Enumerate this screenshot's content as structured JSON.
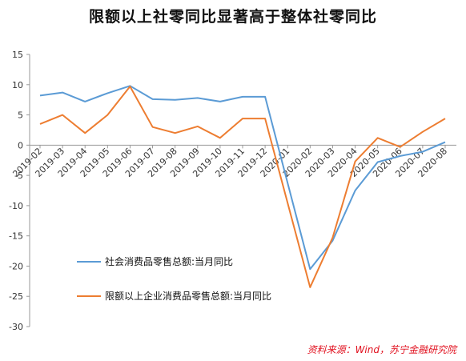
{
  "chart_data": {
    "type": "line",
    "title": "限额以上社零同比显著高于整体社零同比",
    "x": [
      "2019-02",
      "2019-03",
      "2019-04",
      "2019-05",
      "2019-06",
      "2019-07",
      "2019-08",
      "2019-09",
      "2019-10",
      "2019-11",
      "2019-12",
      "2020-01",
      "2020-02",
      "2020-03",
      "2020-04",
      "2020-05",
      "2020-06",
      "2020-07",
      "2020-08"
    ],
    "y_ticks": [
      15,
      10,
      5,
      0,
      -5,
      -10,
      -15,
      -20,
      -25,
      -30
    ],
    "ylim": [
      -30,
      15
    ],
    "series": [
      {
        "name": "社会消费品零售总额:当月同比",
        "color": "#5b9bd5",
        "values": [
          8.2,
          8.7,
          7.2,
          8.6,
          9.8,
          7.6,
          7.5,
          7.8,
          7.2,
          8.0,
          8.0,
          null,
          -20.5,
          -15.8,
          -7.5,
          -2.8,
          -1.8,
          -1.1,
          0.5
        ]
      },
      {
        "name": "限额以上企业消费品零售总额:当月同比",
        "color": "#ed7d31",
        "values": [
          3.5,
          5.0,
          2.0,
          5.0,
          9.7,
          3.0,
          2.0,
          3.1,
          1.2,
          4.4,
          4.4,
          null,
          -23.5,
          -15.3,
          -2.7,
          1.2,
          -0.3,
          2.2,
          4.4
        ]
      }
    ],
    "legend_position": "lower-center",
    "grid": false,
    "source": "资料来源：Wind，苏宁金融研究院"
  }
}
